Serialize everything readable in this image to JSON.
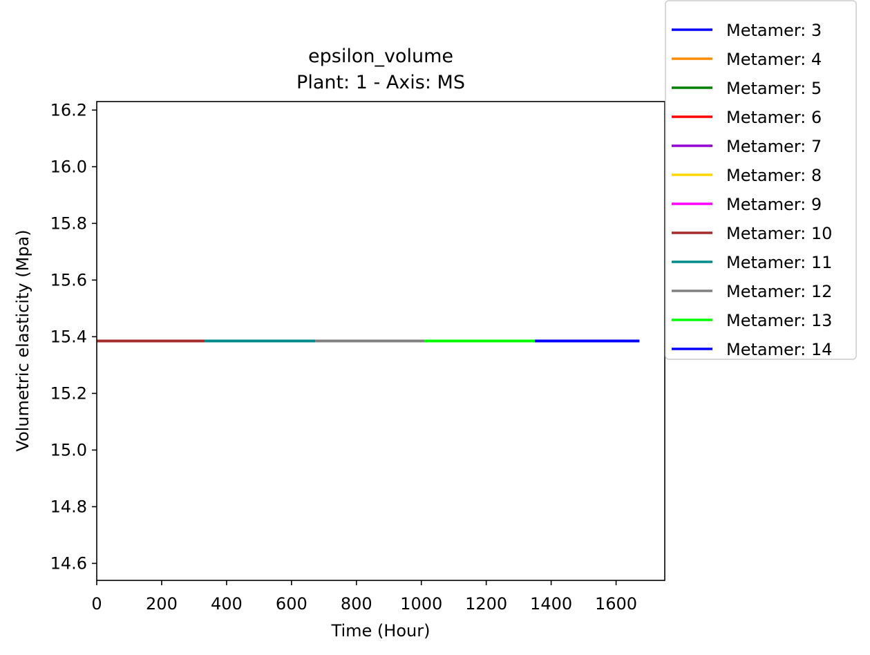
{
  "chart_data": {
    "type": "line",
    "title": "epsilon_volume",
    "subtitle": "Plant: 1 - Axis: MS",
    "xlabel": "Time (Hour)",
    "ylabel": "Volumetric elasticity (Mpa)",
    "xlim": [
      0,
      1750
    ],
    "ylim": [
      14.54,
      16.23
    ],
    "xticks": [
      0,
      200,
      400,
      600,
      800,
      1000,
      1200,
      1400,
      1600
    ],
    "yticks": [
      14.6,
      14.8,
      15.0,
      15.2,
      15.4,
      15.6,
      15.8,
      16.0,
      16.2
    ],
    "ytick_labels": [
      "14.6",
      "14.8",
      "15.0",
      "15.2",
      "15.4",
      "15.6",
      "15.8",
      "16.0",
      "16.2"
    ],
    "grid": false,
    "legend_position": "outside-top-right",
    "series": [
      {
        "name": "Metamer: 3",
        "color": "#0000ff",
        "x": [],
        "y": []
      },
      {
        "name": "Metamer: 4",
        "color": "#ff8c00",
        "x": [],
        "y": []
      },
      {
        "name": "Metamer: 5",
        "color": "#007f00",
        "x": [],
        "y": []
      },
      {
        "name": "Metamer: 6",
        "color": "#ff0000",
        "x": [],
        "y": []
      },
      {
        "name": "Metamer: 7",
        "color": "#9400d3",
        "x": [],
        "y": []
      },
      {
        "name": "Metamer: 8",
        "color": "#ffd700",
        "x": [],
        "y": []
      },
      {
        "name": "Metamer: 9",
        "color": "#ff00ff",
        "x": [],
        "y": []
      },
      {
        "name": "Metamer: 10",
        "color": "#a52a2a",
        "x": [
          0,
          333
        ],
        "y": [
          15.385,
          15.385
        ]
      },
      {
        "name": "Metamer: 11",
        "color": "#008b8b",
        "x": [
          333,
          673
        ],
        "y": [
          15.385,
          15.385
        ]
      },
      {
        "name": "Metamer: 12",
        "color": "#808080",
        "x": [
          673,
          1010
        ],
        "y": [
          15.385,
          15.385
        ]
      },
      {
        "name": "Metamer: 13",
        "color": "#00ff00",
        "x": [
          1010,
          1350
        ],
        "y": [
          15.385,
          15.385
        ]
      },
      {
        "name": "Metamer: 14",
        "color": "#0000ff",
        "x": [
          1350,
          1672
        ],
        "y": [
          15.385,
          15.385
        ]
      }
    ]
  }
}
